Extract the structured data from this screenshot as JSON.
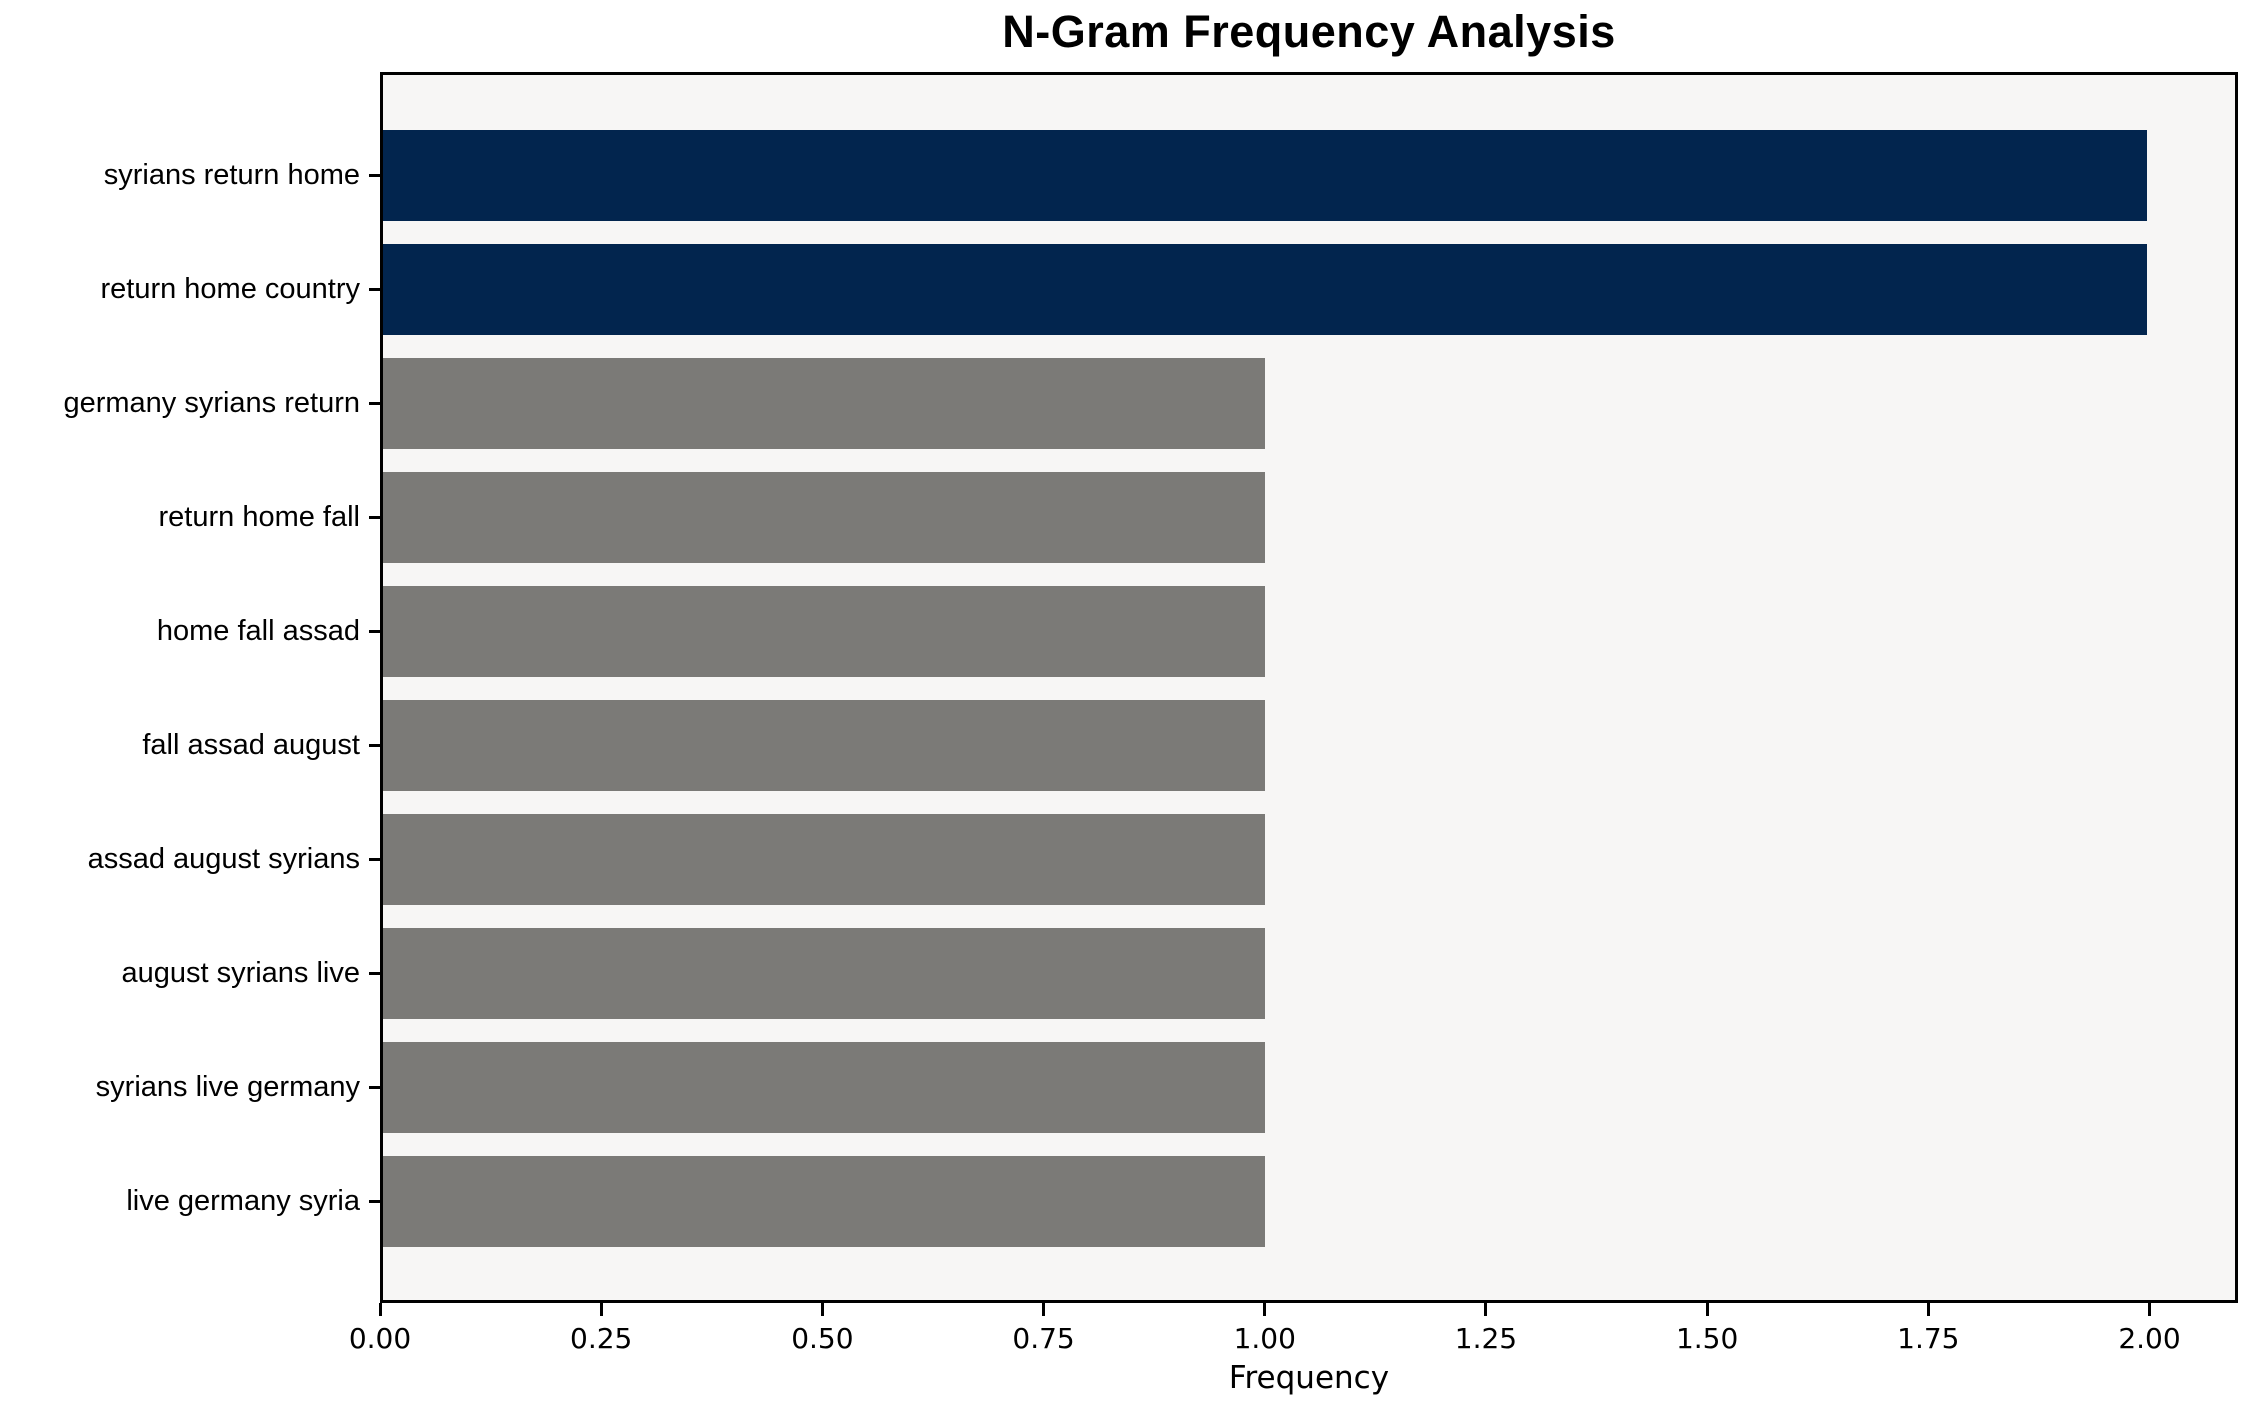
{
  "chart_data": {
    "type": "bar",
    "orientation": "horizontal",
    "title": "N-Gram Frequency Analysis",
    "xlabel": "Frequency",
    "ylabel": "",
    "categories": [
      "syrians return home",
      "return home country",
      "germany syrians return",
      "return home fall",
      "home fall assad",
      "fall assad august",
      "assad august syrians",
      "august syrians live",
      "syrians live germany",
      "live germany syria"
    ],
    "values": [
      2,
      2,
      1,
      1,
      1,
      1,
      1,
      1,
      1,
      1
    ],
    "bar_colors": [
      "#02254e",
      "#02254e",
      "#7b7a77",
      "#7b7a77",
      "#7b7a77",
      "#7b7a77",
      "#7b7a77",
      "#7b7a77",
      "#7b7a77",
      "#7b7a77"
    ],
    "xlim": [
      0,
      2.1
    ],
    "xticks": [
      0,
      0.25,
      0.5,
      0.75,
      1.0,
      1.25,
      1.5,
      1.75,
      2.0
    ],
    "xtick_labels": [
      "0.00",
      "0.25",
      "0.50",
      "0.75",
      "1.00",
      "1.25",
      "1.50",
      "1.75",
      "2.00"
    ],
    "grid": false,
    "legend_position": "none",
    "colors": {
      "highlight": "#02254e",
      "default_bar": "#7b7a77",
      "plot_background": "#f7f6f5",
      "figure_background": "#ffffff",
      "spine": "#000000",
      "text": "#000000"
    }
  }
}
